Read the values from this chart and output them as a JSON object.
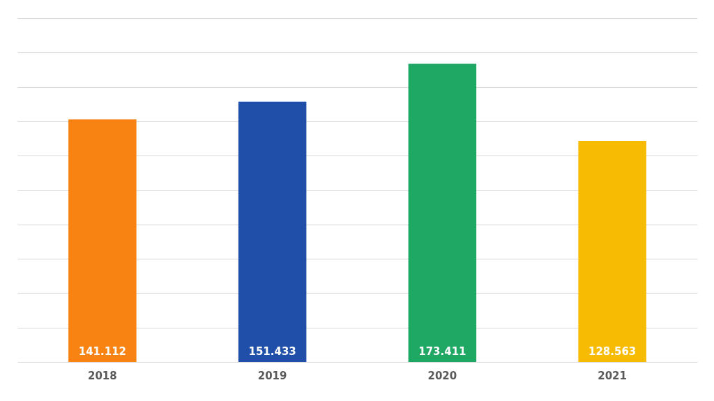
{
  "chart_data": {
    "type": "bar",
    "categories": [
      "2018",
      "2019",
      "2020",
      "2021"
    ],
    "values": [
      141112,
      151433,
      173411,
      128563
    ],
    "value_labels": [
      "141.112",
      "151.433",
      "173.411",
      "128.563"
    ],
    "colors": [
      "#f88212",
      "#1f4fa8",
      "#1fa764",
      "#f8bb04"
    ],
    "ylim": [
      0,
      200000
    ],
    "yticks": [
      0,
      20000,
      40000,
      60000,
      80000,
      100000,
      120000,
      140000,
      160000,
      180000,
      200000
    ],
    "tick_labels": "x",
    "grid": "y"
  }
}
